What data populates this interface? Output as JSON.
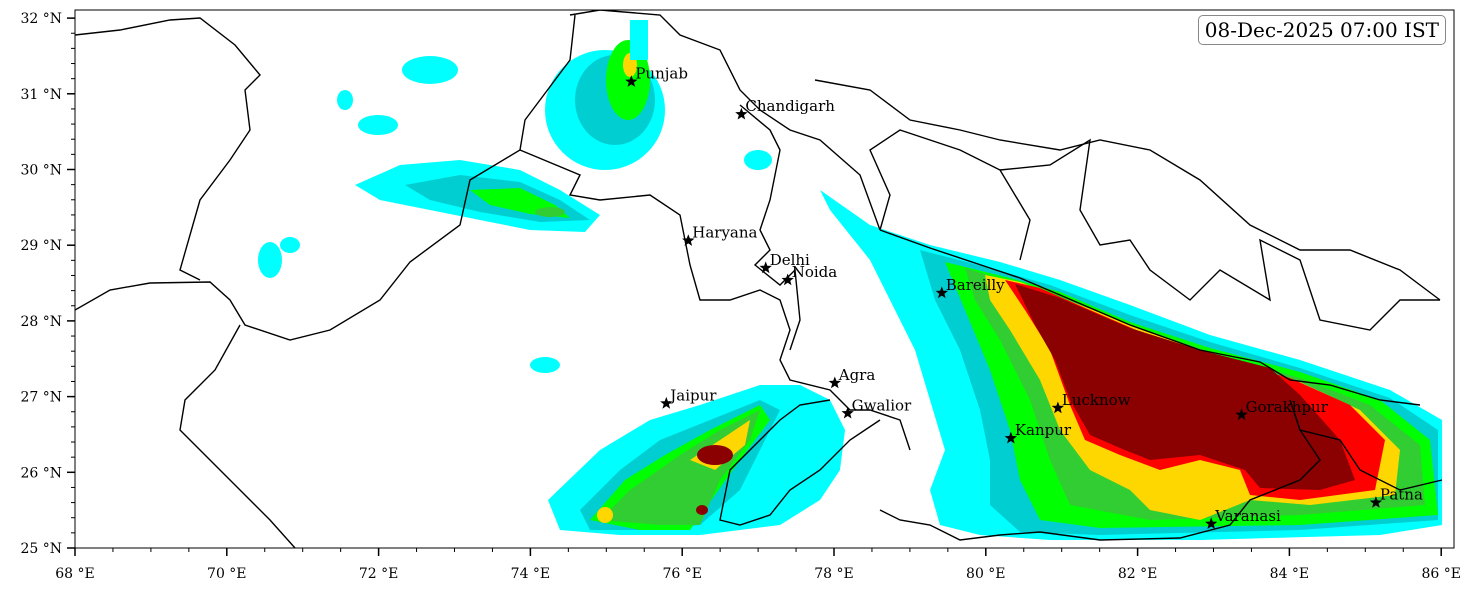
{
  "timestamp": "08-Dec-2025 07:00 IST",
  "map": {
    "lon_range": [
      68,
      86.2
    ],
    "lat_range": [
      25,
      32.1
    ],
    "x_ticks": [
      {
        "value": 68,
        "label": "68 °E"
      },
      {
        "value": 70,
        "label": "70 °E"
      },
      {
        "value": 72,
        "label": "72 °E"
      },
      {
        "value": 74,
        "label": "74 °E"
      },
      {
        "value": 76,
        "label": "76 °E"
      },
      {
        "value": 78,
        "label": "78 °E"
      },
      {
        "value": 80,
        "label": "80 °E"
      },
      {
        "value": 82,
        "label": "82 °E"
      },
      {
        "value": 84,
        "label": "84 °E"
      },
      {
        "value": 86,
        "label": "86 °E"
      }
    ],
    "y_ticks": [
      {
        "value": 25,
        "label": "25 °N"
      },
      {
        "value": 26,
        "label": "26 °N"
      },
      {
        "value": 27,
        "label": "27 °N"
      },
      {
        "value": 28,
        "label": "28 °N"
      },
      {
        "value": 29,
        "label": "29 °N"
      },
      {
        "value": 30,
        "label": "30 °N"
      },
      {
        "value": 31,
        "label": "31 °N"
      },
      {
        "value": 32,
        "label": "32 °N"
      }
    ],
    "level_colors": [
      "#00ffff",
      "#00ced1",
      "#00ff00",
      "#32cd32",
      "#ffd700",
      "#ff0000",
      "#8b0000"
    ],
    "cities": [
      {
        "name": "Punjab",
        "lon": 75.33,
        "lat": 31.16
      },
      {
        "name": "Chandigarh",
        "lon": 76.78,
        "lat": 30.73
      },
      {
        "name": "Haryana",
        "lon": 76.08,
        "lat": 29.06
      },
      {
        "name": "Delhi",
        "lon": 77.1,
        "lat": 28.7
      },
      {
        "name": "Noida",
        "lon": 77.39,
        "lat": 28.54
      },
      {
        "name": "Bareilly",
        "lon": 79.42,
        "lat": 28.37
      },
      {
        "name": "Agra",
        "lon": 78.01,
        "lat": 27.18
      },
      {
        "name": "Jaipur",
        "lon": 75.79,
        "lat": 26.91
      },
      {
        "name": "Gwalior",
        "lon": 78.18,
        "lat": 26.78
      },
      {
        "name": "Lucknow",
        "lon": 80.95,
        "lat": 26.85
      },
      {
        "name": "Kanpur",
        "lon": 80.33,
        "lat": 26.45
      },
      {
        "name": "Gorakhpur",
        "lon": 83.37,
        "lat": 26.76
      },
      {
        "name": "Varanasi",
        "lon": 82.97,
        "lat": 25.32
      },
      {
        "name": "Patna",
        "lon": 85.14,
        "lat": 25.6
      }
    ]
  }
}
